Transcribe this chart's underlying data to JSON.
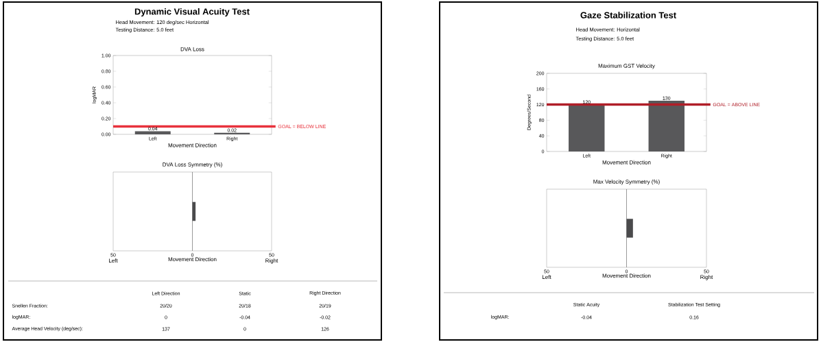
{
  "chart_data": [
    {
      "type": "other",
      "title": "Dynamic Visual Acuity Test",
      "annotations": [
        "Head Movement: 120 deg/sec Horizontal",
        "Testing Distance: 5.0  feet"
      ]
    },
    {
      "type": "bar",
      "title": "DVA Loss",
      "categories": [
        "Left",
        "Right"
      ],
      "values": [
        0.04,
        0.02
      ],
      "color": "#58585a",
      "data_labels": true,
      "xlabel": "Movement Direction",
      "ylabel": "logMAR",
      "ylim": [
        0,
        1
      ],
      "yticks": [
        {
          "value": 0,
          "label": "0.00"
        },
        {
          "value": 0.2,
          "label": "0.20"
        },
        {
          "value": 0.4,
          "label": "0.40"
        },
        {
          "value": 0.6,
          "label": "0.60"
        },
        {
          "value": 0.8,
          "label": "0.80"
        },
        {
          "value": 1,
          "label": "1.00"
        }
      ],
      "ref_lines": [
        {
          "axis": "y",
          "value": 0.1,
          "label": "GOAL = BELOW LINE",
          "color": "#e8323c"
        }
      ]
    },
    {
      "type": "bar",
      "orientation": "horizontal",
      "title": "DVA Loss Symmetry (%)",
      "categories": [
        null
      ],
      "values": [
        2
      ],
      "color": "#4a4a4c",
      "xlabel": "Movement Direction",
      "xlim": [
        -50,
        50
      ],
      "xticks": [
        {
          "value": -50,
          "label": "50"
        },
        {
          "value": 0,
          "label": "0"
        },
        {
          "value": 50,
          "label": "50"
        }
      ],
      "tick_labels": "x",
      "ref_lines": [
        {
          "axis": "x",
          "value": 0,
          "color": "#555555"
        }
      ],
      "annotations": [
        "Left",
        "Right"
      ]
    },
    {
      "type": "other",
      "categories": [
        "Left Direction",
        "Static",
        "Right Direction"
      ],
      "y_categories": [
        "Snellen Fraction:",
        "logMAR:",
        "Average Head Velocity (deg/sec):"
      ],
      "cell_labels": [
        [
          "20/20",
          "20/18",
          "20/19"
        ],
        [
          "0",
          "-0.04",
          "-0.02"
        ],
        [
          "137",
          "0",
          "126"
        ]
      ]
    },
    {
      "type": "other",
      "title": "Gaze Stabilization Test",
      "annotations": [
        "Head Movement: Horizontal",
        "Testing Distance: 5.0 feet"
      ]
    },
    {
      "type": "bar",
      "title": "Maximum GST Velocity",
      "categories": [
        "Left",
        "Right"
      ],
      "values": [
        120,
        130
      ],
      "color": "#58585a",
      "data_labels": true,
      "xlabel": "Movement Direction",
      "ylabel": "Degrees/Second",
      "ylim": [
        0,
        200
      ],
      "yticks": [
        0,
        40,
        80,
        120,
        160,
        200
      ],
      "ref_lines": [
        {
          "axis": "y",
          "value": 120,
          "label": "GOAL = ABOVE LINE",
          "color": "#b01e28"
        }
      ]
    },
    {
      "type": "bar",
      "orientation": "horizontal",
      "title": "Max Velocity Symmetry (%)",
      "categories": [
        null
      ],
      "values": [
        4
      ],
      "color": "#4a4a4c",
      "xlabel": "Movement Direction",
      "xlim": [
        -50,
        50
      ],
      "xticks": [
        {
          "value": -50,
          "label": "50"
        },
        {
          "value": 0,
          "label": "0"
        },
        {
          "value": 50,
          "label": "50"
        }
      ],
      "tick_labels": "x",
      "ref_lines": [
        {
          "axis": "x",
          "value": 0,
          "color": "#555555"
        }
      ],
      "annotations": [
        "Left",
        "Right"
      ]
    },
    {
      "type": "other",
      "categories": [
        "Static Acuity",
        "Stabilization Test Setting"
      ],
      "y_categories": [
        "logMAR:"
      ],
      "cell_labels": [
        [
          "-0.04",
          "0.16"
        ]
      ]
    }
  ]
}
